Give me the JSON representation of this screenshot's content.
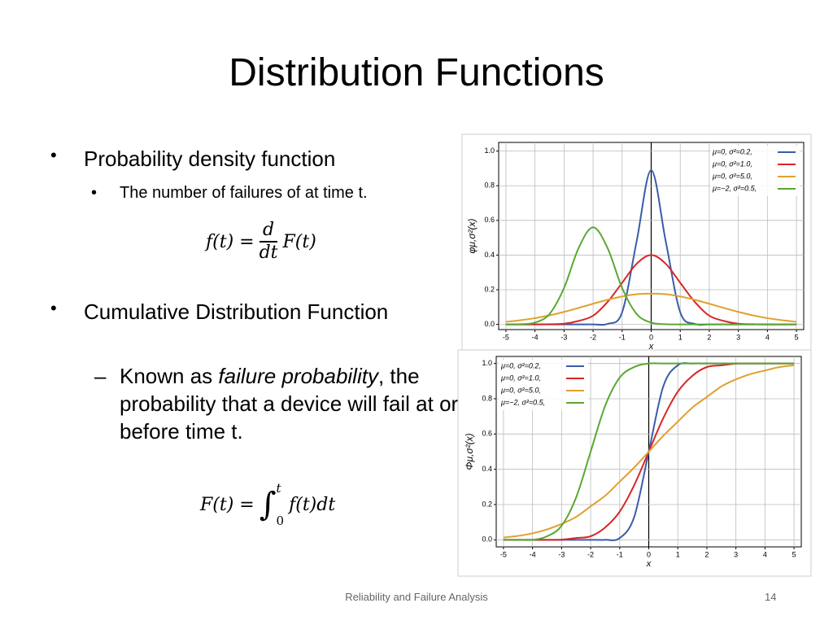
{
  "slide": {
    "title": "Distribution Functions",
    "bullet1": "Probability density function",
    "sub1": "The number of failures of at time t.",
    "formula1": {
      "lhs": "f(t) =",
      "num": "d",
      "den": "dt",
      "rhs": "F(t)"
    },
    "bullet2": "Cumulative Distribution Function",
    "sub2": {
      "dash": "–",
      "before": "Known as ",
      "italic": "failure probability",
      "after": ", the probability that a device will fail at or before time t."
    },
    "formula2": {
      "lhs": "F(t) =",
      "integral": "∫",
      "upper": "t",
      "lower": "0",
      "rhs": "f(t)dt"
    },
    "footer": "Reliability and Failure Analysis",
    "page": "14"
  },
  "chart_data": [
    {
      "type": "line",
      "x_label": "x",
      "y_label": "φμ,σ²(x)",
      "x": [
        -5,
        -4.5,
        -4,
        -3.5,
        -3,
        -2.5,
        -2,
        -1.5,
        -1,
        -0.5,
        0,
        0.5,
        1,
        1.5,
        2,
        2.5,
        3,
        3.5,
        4,
        4.5,
        5
      ],
      "xlim": [
        -5.25,
        5.25
      ],
      "xticks": [
        -5,
        -4,
        -3,
        -2,
        -1,
        0,
        1,
        2,
        3,
        4,
        5
      ],
      "ylim": [
        -0.03,
        1.05
      ],
      "yticks": [
        {
          "value": 0,
          "label": "0.0"
        },
        {
          "value": 0.2,
          "label": "0.2"
        },
        {
          "value": 0.4,
          "label": "0.4"
        },
        {
          "value": 0.6,
          "label": "0.6"
        },
        {
          "value": 0.8,
          "label": "0.8"
        },
        {
          "value": 1,
          "label": "1.0"
        }
      ],
      "grid": true,
      "legend": "upper right",
      "series": [
        {
          "name": "μ=0,   σ²=0.2,",
          "color": "#3b5da8",
          "values": [
            0,
            0,
            0,
            0,
            0,
            0,
            0,
            0.003,
            0.07,
            0.48,
            0.89,
            0.48,
            0.07,
            0.003,
            0,
            0,
            0,
            0,
            0,
            0,
            0
          ]
        },
        {
          "name": "μ=0,   σ²=1.0,",
          "color": "#d62728",
          "values": [
            0,
            0,
            0,
            0.001,
            0.004,
            0.02,
            0.05,
            0.13,
            0.24,
            0.35,
            0.4,
            0.35,
            0.24,
            0.13,
            0.05,
            0.02,
            0.004,
            0.001,
            0,
            0,
            0
          ]
        },
        {
          "name": "μ=0,   σ²=5.0,",
          "color": "#e0a030",
          "values": [
            0.015,
            0.024,
            0.036,
            0.052,
            0.072,
            0.095,
            0.119,
            0.142,
            0.161,
            0.174,
            0.178,
            0.174,
            0.161,
            0.142,
            0.119,
            0.095,
            0.072,
            0.052,
            0.036,
            0.024,
            0.015
          ]
        },
        {
          "name": "μ=−2,  σ²=0.5,",
          "color": "#5aa832",
          "values": [
            0,
            0.001,
            0.01,
            0.06,
            0.21,
            0.44,
            0.56,
            0.44,
            0.21,
            0.06,
            0.01,
            0.001,
            0,
            0,
            0,
            0,
            0,
            0,
            0,
            0,
            0
          ]
        }
      ]
    },
    {
      "type": "line",
      "x_label": "x",
      "y_label": "Φμ,σ²(x)",
      "x": [
        -5,
        -4.5,
        -4,
        -3.5,
        -3,
        -2.5,
        -2,
        -1.5,
        -1,
        -0.5,
        0,
        0.5,
        1,
        1.5,
        2,
        2.5,
        3,
        3.5,
        4,
        4.5,
        5
      ],
      "xlim": [
        -5.25,
        5.25
      ],
      "xticks": [
        -5,
        -4,
        -3,
        -2,
        -1,
        0,
        1,
        2,
        3,
        4,
        5
      ],
      "ylim": [
        -0.04,
        1.04
      ],
      "yticks": [
        {
          "value": 0,
          "label": "0.0"
        },
        {
          "value": 0.2,
          "label": "0.2"
        },
        {
          "value": 0.4,
          "label": "0.4"
        },
        {
          "value": 0.6,
          "label": "0.6"
        },
        {
          "value": 0.8,
          "label": "0.8"
        },
        {
          "value": 1,
          "label": "1.0"
        }
      ],
      "grid": true,
      "legend": "upper left",
      "series": [
        {
          "name": "μ=0,   σ²=0.2,",
          "color": "#3b5da8",
          "values": [
            0,
            0,
            0,
            0,
            0,
            0,
            0,
            0,
            0.01,
            0.13,
            0.5,
            0.87,
            0.99,
            1,
            1,
            1,
            1,
            1,
            1,
            1,
            1
          ]
        },
        {
          "name": "μ=0,   σ²=1.0,",
          "color": "#d62728",
          "values": [
            0,
            0,
            0,
            0,
            0.001,
            0.01,
            0.02,
            0.07,
            0.16,
            0.31,
            0.5,
            0.69,
            0.84,
            0.93,
            0.98,
            0.99,
            0.999,
            1,
            1,
            1,
            1
          ]
        },
        {
          "name": "μ=0,   σ²=5.0,",
          "color": "#e0a030",
          "values": [
            0.013,
            0.022,
            0.037,
            0.059,
            0.09,
            0.13,
            0.19,
            0.25,
            0.33,
            0.41,
            0.5,
            0.59,
            0.67,
            0.75,
            0.81,
            0.87,
            0.91,
            0.94,
            0.96,
            0.98,
            0.99
          ]
        },
        {
          "name": "μ=−2,  σ²=0.5,",
          "color": "#5aa832",
          "values": [
            0,
            0,
            0,
            0.02,
            0.08,
            0.24,
            0.5,
            0.76,
            0.92,
            0.98,
            1,
            1,
            1,
            1,
            1,
            1,
            1,
            1,
            1,
            1,
            1
          ]
        }
      ]
    }
  ]
}
